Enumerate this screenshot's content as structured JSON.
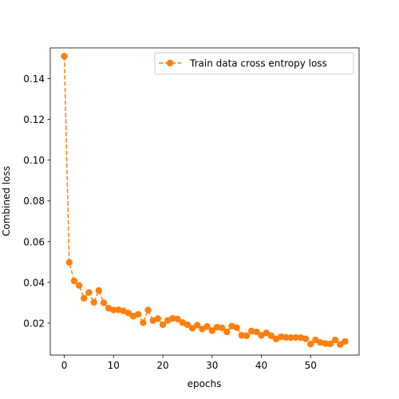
{
  "chart_data": {
    "type": "line",
    "xlabel": "epochs",
    "ylabel": "Combined loss",
    "xlim": [
      -2.85,
      59.85
    ],
    "ylim": [
      0.0043,
      0.1551
    ],
    "xticks": [
      0,
      10,
      20,
      30,
      40,
      50
    ],
    "yticks": [
      0.02,
      0.04,
      0.06,
      0.08,
      0.1,
      0.12,
      0.14
    ],
    "ytick_labels": [
      "0.02",
      "0.04",
      "0.06",
      "0.08",
      "0.10",
      "0.12",
      "0.14"
    ],
    "grid": false,
    "legend_position": "top-right",
    "line_style": "dashed",
    "marker": "circle",
    "series": [
      {
        "name": "Train data cross entropy loss",
        "color": "#ff7f0e",
        "x": [
          0,
          1,
          2,
          3,
          4,
          5,
          6,
          7,
          8,
          9,
          10,
          11,
          12,
          13,
          14,
          15,
          16,
          17,
          18,
          19,
          20,
          21,
          22,
          23,
          24,
          25,
          26,
          27,
          28,
          29,
          30,
          31,
          32,
          33,
          34,
          35,
          36,
          37,
          38,
          39,
          40,
          41,
          42,
          43,
          44,
          45,
          46,
          47,
          48,
          49,
          50,
          51,
          52,
          53,
          54,
          55,
          56,
          57
        ],
        "values": [
          0.151,
          0.0498,
          0.0407,
          0.0385,
          0.0322,
          0.035,
          0.0302,
          0.036,
          0.03,
          0.0273,
          0.0264,
          0.0265,
          0.026,
          0.025,
          0.0234,
          0.0243,
          0.0202,
          0.0264,
          0.0213,
          0.0222,
          0.0192,
          0.0213,
          0.0223,
          0.022,
          0.0203,
          0.0192,
          0.0175,
          0.019,
          0.0171,
          0.0183,
          0.0163,
          0.018,
          0.0177,
          0.0157,
          0.0185,
          0.0178,
          0.014,
          0.0138,
          0.0161,
          0.0157,
          0.014,
          0.0152,
          0.0138,
          0.0122,
          0.0133,
          0.013,
          0.0129,
          0.013,
          0.0129,
          0.0123,
          0.0097,
          0.0117,
          0.0105,
          0.01,
          0.0098,
          0.0117,
          0.0095,
          0.011
        ]
      }
    ]
  }
}
